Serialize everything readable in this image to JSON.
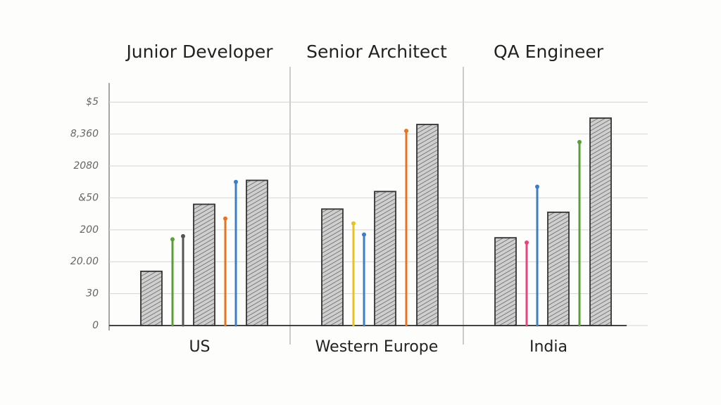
{
  "chart_data": {
    "type": "sketch-bar",
    "yticks": [
      {
        "value": 0,
        "label": "0"
      },
      {
        "value": 1,
        "label": "30"
      },
      {
        "value": 2,
        "label": "20.00"
      },
      {
        "value": 3,
        "label": "200"
      },
      {
        "value": 4,
        "label": "&50"
      },
      {
        "value": 5,
        "label": "2080"
      },
      {
        "value": 6,
        "label": "8,360"
      },
      {
        "value": 7,
        "label": "$5"
      }
    ],
    "ylim": [
      0,
      7.6
    ],
    "grid": true,
    "panels": [
      {
        "title": "Junior Developer",
        "category": "US",
        "marks": [
          {
            "kind": "bar",
            "value": 1.7
          },
          {
            "kind": "line",
            "color": "#5a9e3a",
            "value": 2.7
          },
          {
            "kind": "line",
            "color": "#555555",
            "value": 2.8
          },
          {
            "kind": "bar",
            "value": 3.8
          },
          {
            "kind": "line",
            "color": "#e8731f",
            "value": 3.35
          },
          {
            "kind": "line",
            "color": "#3d7fc4",
            "value": 4.5
          },
          {
            "kind": "bar",
            "value": 4.55
          }
        ]
      },
      {
        "title": "Senior Architect",
        "category": "Western Europe",
        "marks": [
          {
            "kind": "bar",
            "value": 3.65
          },
          {
            "kind": "line",
            "color": "#e8c21f",
            "value": 3.2
          },
          {
            "kind": "line",
            "color": "#3d7fc4",
            "value": 2.85
          },
          {
            "kind": "bar",
            "value": 4.2
          },
          {
            "kind": "line",
            "color": "#e8731f",
            "value": 6.1
          },
          {
            "kind": "bar",
            "value": 6.3
          }
        ]
      },
      {
        "title": "QA Engineer",
        "category": "India",
        "marks": [
          {
            "kind": "bar",
            "value": 2.75
          },
          {
            "kind": "line",
            "color": "#e8437a",
            "value": 2.6
          },
          {
            "kind": "line",
            "color": "#3d7fc4",
            "value": 4.35
          },
          {
            "kind": "bar",
            "value": 3.55
          },
          {
            "kind": "line",
            "color": "#5a9e3a",
            "value": 5.75
          },
          {
            "kind": "bar",
            "value": 6.5
          }
        ]
      }
    ]
  }
}
